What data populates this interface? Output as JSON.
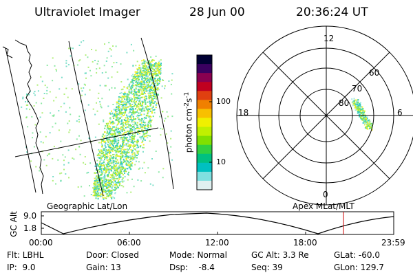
{
  "header": {
    "instrument": "Ultraviolet Imager",
    "date": "28 Jun 00",
    "time": "20:36:24 UT"
  },
  "left_panel": {
    "caption": "Geographic Lat/Lon"
  },
  "right_panel": {
    "caption": "Apex MLat/MLT",
    "clock_labels": [
      "12",
      "18",
      "6",
      "0"
    ],
    "lat_labels": [
      "60",
      "70",
      "80"
    ]
  },
  "colorbar": {
    "unit_label": "photon cm",
    "unit_exp1": "-2",
    "unit_mid": "s",
    "unit_exp2": "-1",
    "tick_labels": [
      "100",
      "10"
    ],
    "colors": [
      "#000033",
      "#3a0060",
      "#8a0050",
      "#c00020",
      "#e04010",
      "#f08000",
      "#f8c000",
      "#f0f000",
      "#c0f000",
      "#80e000",
      "#30d040",
      "#00c080",
      "#00c0c0",
      "#80e0e0",
      "#e0f0f0"
    ]
  },
  "altitude_plot": {
    "ylabel": "GC Alt",
    "yticks": [
      "9.0",
      "1.8"
    ],
    "xticks": [
      "00:00",
      "06:00",
      "12:00",
      "18:00",
      "23:59"
    ],
    "marker_color": "#cc0000"
  },
  "footer": {
    "flt": "Flt: LBHL",
    "ip": "IP:  9.0",
    "door": "Door: Closed",
    "gain": "Gain: 13",
    "mode": "Mode: Normal",
    "dsp": "Dsp:    -8.4",
    "gcalt": "GC Alt: 3.3 Re",
    "seq": "Seq: 39",
    "glat": "GLat: -60.0",
    "glon": "GLon: 129.7"
  }
}
